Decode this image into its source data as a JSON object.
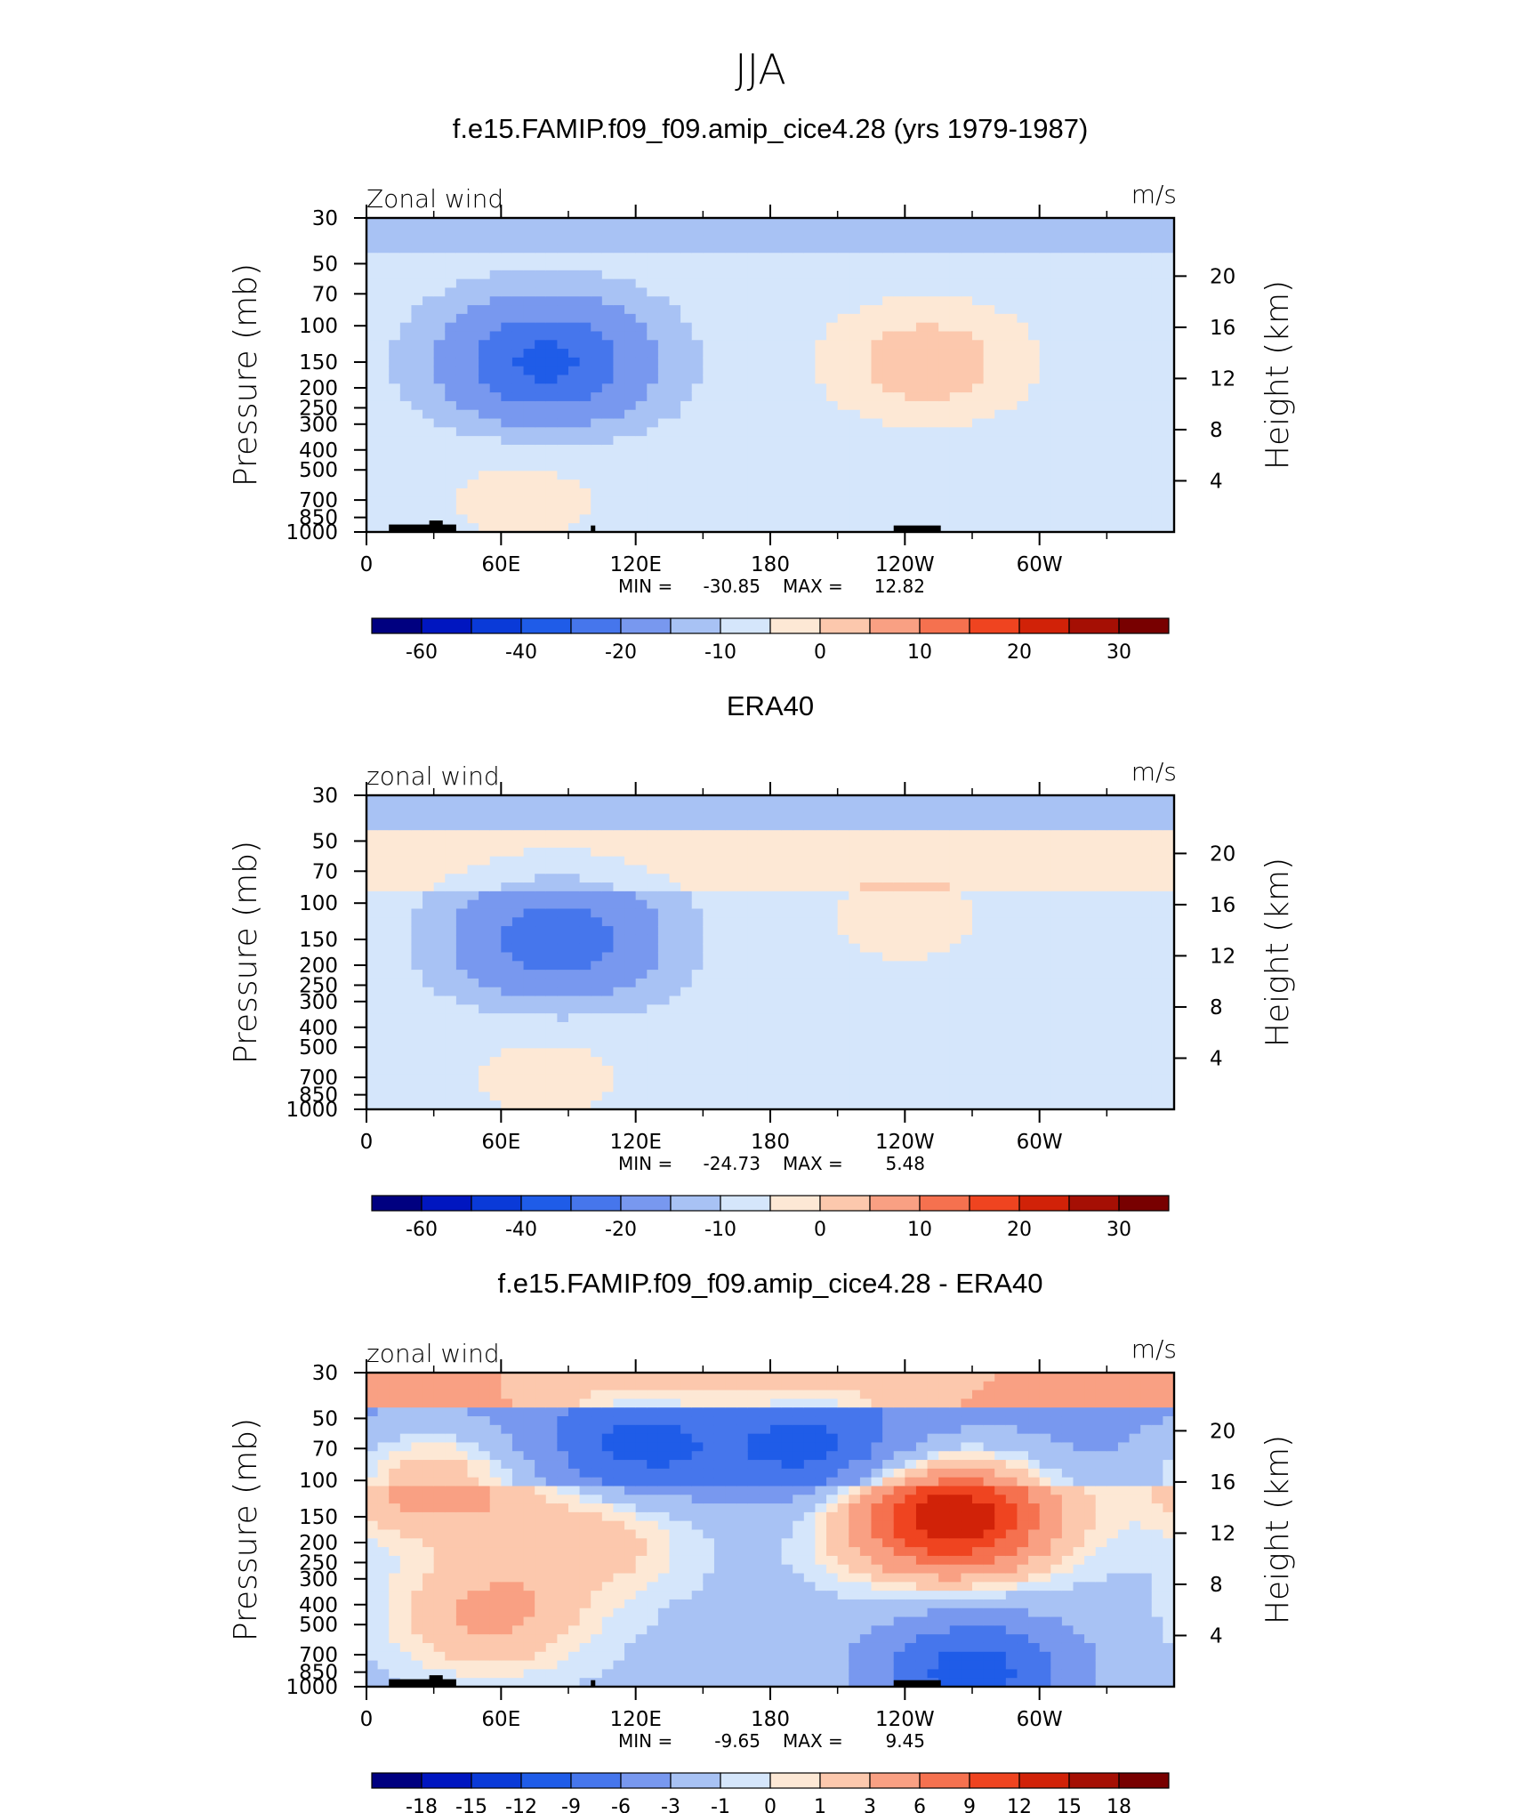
{
  "figure": {
    "title": "JJA"
  },
  "colors": {
    "full_scale": [
      "#000080",
      "#0016c0",
      "#0a3ad8",
      "#1f5ce8",
      "#4676ec",
      "#7898ef",
      "#a8c2f4",
      "#d5e6fb",
      "#fde8d5",
      "#fcc8ad",
      "#f9a083",
      "#f5714f",
      "#ef4420",
      "#d12208",
      "#a50f04",
      "#780000"
    ],
    "diff_scale": [
      "#000080",
      "#0016c0",
      "#0a3ad8",
      "#1f5ce8",
      "#4676ec",
      "#7898ef",
      "#a8c2f4",
      "#d5e6fb",
      "#fde8d5",
      "#fcc8ad",
      "#f9a083",
      "#f5714f",
      "#ef4420",
      "#d12208",
      "#a50f04",
      "#780000"
    ],
    "topography": "#000000"
  },
  "chart_data": [
    {
      "type": "contour",
      "title": "f.e15.FAMIP.f09_f09.amip_cice4.28 (yrs 1979-1987)",
      "left_label": "Zonal wind",
      "right_label": "m/s",
      "ylabel": "Pressure (mb)",
      "y2label": "Height (km)",
      "x_ticks": [
        "0",
        "60E",
        "120E",
        "180",
        "120W",
        "60W"
      ],
      "y_ticks": [
        "30",
        "50",
        "70",
        "100",
        "150",
        "200",
        "250",
        "300",
        "400",
        "500",
        "700",
        "850",
        "1000"
      ],
      "y2_ticks": [
        "20",
        "16",
        "12",
        "8",
        "4"
      ],
      "min_label": "MIN =",
      "min": "-30.85",
      "max_label": "MAX =",
      "max": "12.82",
      "colorbar_labels": [
        "-60",
        "-40",
        "-20",
        "-10",
        "0",
        "10",
        "20",
        "30"
      ],
      "colorbar_positions": [
        1,
        3,
        5,
        7,
        9,
        11,
        13,
        15
      ],
      "has_topography": true,
      "features": [
        {
          "lon": 80,
          "p": 150,
          "value": -30
        },
        {
          "lon": 250,
          "p": 150,
          "value": 12
        },
        {
          "lon": 70,
          "p": 700,
          "value": 5
        }
      ]
    },
    {
      "type": "contour",
      "title": "ERA40",
      "left_label": "zonal wind",
      "right_label": "m/s",
      "ylabel": "Pressure (mb)",
      "y2label": "Height (km)",
      "x_ticks": [
        "0",
        "60E",
        "120E",
        "180",
        "120W",
        "60W"
      ],
      "y_ticks": [
        "30",
        "50",
        "70",
        "100",
        "150",
        "200",
        "250",
        "300",
        "400",
        "500",
        "700",
        "850",
        "1000"
      ],
      "y2_ticks": [
        "20",
        "16",
        "12",
        "8",
        "4"
      ],
      "min_label": "MIN =",
      "min": "-24.73",
      "max_label": "MAX =",
      "max": "5.48",
      "colorbar_labels": [
        "-60",
        "-40",
        "-20",
        "-10",
        "0",
        "10",
        "20",
        "30"
      ],
      "colorbar_positions": [
        1,
        3,
        5,
        7,
        9,
        11,
        13,
        15
      ],
      "has_topography": false,
      "features": [
        {
          "lon": 85,
          "p": 150,
          "value": -24
        },
        {
          "lon": 240,
          "p": 120,
          "value": 5
        },
        {
          "lon": 80,
          "p": 700,
          "value": 5
        }
      ]
    },
    {
      "type": "contour",
      "title": "f.e15.FAMIP.f09_f09.amip_cice4.28 - ERA40",
      "left_label": "zonal wind",
      "right_label": "m/s",
      "ylabel": "Pressure (mb)",
      "y2label": "Height (km)",
      "x_ticks": [
        "0",
        "60E",
        "120E",
        "180",
        "120W",
        "60W"
      ],
      "y_ticks": [
        "30",
        "50",
        "70",
        "100",
        "150",
        "200",
        "250",
        "300",
        "400",
        "500",
        "700",
        "850",
        "1000"
      ],
      "y2_ticks": [
        "20",
        "16",
        "12",
        "8",
        "4"
      ],
      "min_label": "MIN =",
      "min": "-9.65",
      "max_label": "MAX =",
      "max": "9.45",
      "colorbar_labels": [
        "-18",
        "-15",
        "-12",
        "-9",
        "-6",
        "-3",
        "-1",
        "0",
        "1",
        "3",
        "6",
        "9",
        "12",
        "15",
        "18"
      ],
      "colorbar_positions": [
        1,
        2,
        3,
        4,
        5,
        6,
        7,
        8,
        9,
        10,
        11,
        12,
        13,
        14,
        15
      ],
      "has_topography": true,
      "features": [
        {
          "lon": 270,
          "p": 150,
          "value": 9
        },
        {
          "lon": 250,
          "p": 150,
          "value": 8
        },
        {
          "lon": 120,
          "p": 70,
          "value": -6
        },
        {
          "lon": 200,
          "p": 70,
          "value": -6
        },
        {
          "lon": 270,
          "p": 850,
          "value": -9
        },
        {
          "lon": 30,
          "p": 100,
          "value": 6
        },
        {
          "lon": 100,
          "p": 180,
          "value": 4
        },
        {
          "lon": 55,
          "p": 450,
          "value": 5
        }
      ]
    }
  ]
}
